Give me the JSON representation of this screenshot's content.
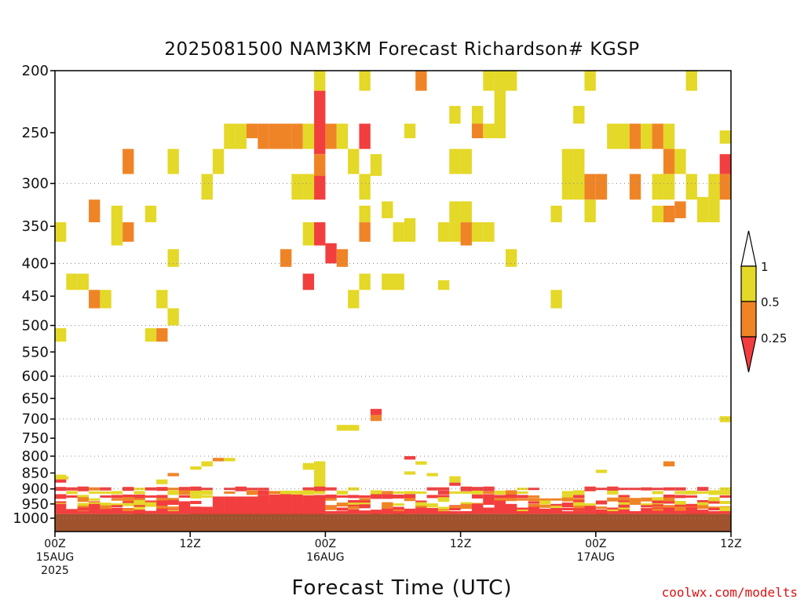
{
  "title": "2025081500 NAM3KM Forecast Richardson# KGSP",
  "xlabel": "Forecast Time (UTC)",
  "credit": "coolwx.com/modelts",
  "colors": {
    "lt025": "#f23e3e",
    "r025_05": "#ef8427",
    "r05_1": "#e4d828",
    "ground": "#a0522d",
    "grid": "#888888",
    "credit": "#dd1111"
  },
  "chart_data": {
    "type": "heatmap",
    "title": "2025081500 NAM3KM Forecast Richardson# KGSP",
    "xlabel": "Forecast Time (UTC)",
    "ylabel": "",
    "x_unit_hours_range": [
      0,
      60
    ],
    "y_range_hpa": [
      200,
      1025
    ],
    "y_scale": "log",
    "y_ticks": [
      200,
      250,
      300,
      350,
      400,
      450,
      500,
      550,
      600,
      650,
      700,
      750,
      800,
      850,
      900,
      950,
      1000
    ],
    "y_gridlines": [
      300,
      400,
      500,
      600,
      700,
      800,
      900,
      1000
    ],
    "x_ticks": [
      {
        "hour": 0,
        "label": "00Z",
        "sub": [
          "15AUG",
          "2025"
        ]
      },
      {
        "hour": 12,
        "label": "12Z",
        "sub": []
      },
      {
        "hour": 24,
        "label": "00Z",
        "sub": [
          "16AUG"
        ]
      },
      {
        "hour": 36,
        "label": "12Z",
        "sub": []
      },
      {
        "hour": 48,
        "label": "00Z",
        "sub": [
          "17AUG"
        ]
      },
      {
        "hour": 60,
        "label": "12Z",
        "sub": []
      }
    ],
    "legend": {
      "placement": "right",
      "labels": [
        "1",
        "0.5",
        "0.25"
      ]
    },
    "ground_above_hpa": 985,
    "cells": [
      {
        "h": 23.5,
        "p1": 200,
        "p2": 215,
        "c": "y"
      },
      {
        "h": 27.5,
        "p1": 200,
        "p2": 215,
        "c": "y"
      },
      {
        "h": 32.5,
        "p1": 200,
        "p2": 215,
        "c": "o"
      },
      {
        "h": 38.5,
        "p1": 200,
        "p2": 215,
        "c": "y"
      },
      {
        "h": 39.5,
        "p1": 200,
        "p2": 215,
        "c": "y"
      },
      {
        "h": 40.5,
        "p1": 200,
        "p2": 215,
        "c": "y"
      },
      {
        "h": 39.5,
        "p1": 215,
        "p2": 255,
        "c": "y"
      },
      {
        "h": 47.5,
        "p1": 200,
        "p2": 215,
        "c": "y"
      },
      {
        "h": 56.5,
        "p1": 200,
        "p2": 215,
        "c": "y"
      },
      {
        "h": 23.5,
        "p1": 215,
        "p2": 270,
        "c": "r"
      },
      {
        "h": 23.5,
        "p1": 270,
        "p2": 292,
        "c": "o"
      },
      {
        "h": 23.5,
        "p1": 292,
        "p2": 318,
        "c": "r"
      },
      {
        "h": 35.5,
        "p1": 227,
        "p2": 242,
        "c": "y"
      },
      {
        "h": 37.5,
        "p1": 227,
        "p2": 242,
        "c": "y"
      },
      {
        "h": 46.5,
        "p1": 227,
        "p2": 242,
        "c": "y"
      },
      {
        "h": 15.5,
        "p1": 242,
        "p2": 265,
        "c": "y"
      },
      {
        "h": 16.5,
        "p1": 242,
        "p2": 265,
        "c": "y"
      },
      {
        "h": 17.5,
        "p1": 242,
        "p2": 255,
        "c": "o"
      },
      {
        "h": 18.5,
        "p1": 242,
        "p2": 265,
        "c": "o"
      },
      {
        "h": 19.5,
        "p1": 242,
        "p2": 265,
        "c": "o"
      },
      {
        "h": 20.5,
        "p1": 242,
        "p2": 265,
        "c": "o"
      },
      {
        "h": 21.5,
        "p1": 242,
        "p2": 265,
        "c": "o"
      },
      {
        "h": 22.5,
        "p1": 242,
        "p2": 265,
        "c": "y"
      },
      {
        "h": 24.5,
        "p1": 242,
        "p2": 265,
        "c": "o"
      },
      {
        "h": 25.5,
        "p1": 242,
        "p2": 265,
        "c": "y"
      },
      {
        "h": 27.5,
        "p1": 242,
        "p2": 265,
        "c": "r"
      },
      {
        "h": 31.5,
        "p1": 242,
        "p2": 255,
        "c": "y"
      },
      {
        "h": 37.5,
        "p1": 242,
        "p2": 255,
        "c": "o"
      },
      {
        "h": 38.5,
        "p1": 242,
        "p2": 255,
        "c": "y"
      },
      {
        "h": 39.5,
        "p1": 242,
        "p2": 255,
        "c": "y"
      },
      {
        "h": 49.5,
        "p1": 242,
        "p2": 265,
        "c": "y"
      },
      {
        "h": 50.5,
        "p1": 242,
        "p2": 265,
        "c": "y"
      },
      {
        "h": 51.5,
        "p1": 242,
        "p2": 265,
        "c": "o"
      },
      {
        "h": 52.5,
        "p1": 242,
        "p2": 265,
        "c": "y"
      },
      {
        "h": 53.5,
        "p1": 242,
        "p2": 265,
        "c": "o"
      },
      {
        "h": 54.5,
        "p1": 242,
        "p2": 265,
        "c": "y"
      },
      {
        "h": 59.5,
        "p1": 248,
        "p2": 260,
        "c": "y"
      },
      {
        "h": 6.5,
        "p1": 265,
        "p2": 290,
        "c": "o"
      },
      {
        "h": 10.5,
        "p1": 265,
        "p2": 290,
        "c": "y"
      },
      {
        "h": 14.5,
        "p1": 265,
        "p2": 290,
        "c": "y"
      },
      {
        "h": 26.5,
        "p1": 265,
        "p2": 290,
        "c": "y"
      },
      {
        "h": 28.5,
        "p1": 270,
        "p2": 292,
        "c": "y"
      },
      {
        "h": 35.5,
        "p1": 265,
        "p2": 290,
        "c": "y"
      },
      {
        "h": 36.5,
        "p1": 265,
        "p2": 290,
        "c": "y"
      },
      {
        "h": 45.5,
        "p1": 265,
        "p2": 318,
        "c": "y"
      },
      {
        "h": 46.5,
        "p1": 265,
        "p2": 318,
        "c": "y"
      },
      {
        "h": 55.5,
        "p1": 265,
        "p2": 290,
        "c": "y"
      },
      {
        "h": 54.5,
        "p1": 265,
        "p2": 290,
        "c": "o"
      },
      {
        "h": 59.5,
        "p1": 270,
        "p2": 290,
        "c": "r"
      },
      {
        "h": 13.5,
        "p1": 290,
        "p2": 318,
        "c": "y"
      },
      {
        "h": 21.5,
        "p1": 290,
        "p2": 318,
        "c": "y"
      },
      {
        "h": 22.5,
        "p1": 290,
        "p2": 318,
        "c": "y"
      },
      {
        "h": 27.5,
        "p1": 290,
        "p2": 318,
        "c": "y"
      },
      {
        "h": 47.5,
        "p1": 290,
        "p2": 318,
        "c": "o"
      },
      {
        "h": 48.5,
        "p1": 290,
        "p2": 318,
        "c": "o"
      },
      {
        "h": 51.5,
        "p1": 290,
        "p2": 318,
        "c": "o"
      },
      {
        "h": 53.5,
        "p1": 290,
        "p2": 318,
        "c": "y"
      },
      {
        "h": 54.5,
        "p1": 290,
        "p2": 318,
        "c": "y"
      },
      {
        "h": 56.5,
        "p1": 290,
        "p2": 318,
        "c": "y"
      },
      {
        "h": 58.5,
        "p1": 290,
        "p2": 318,
        "c": "y"
      },
      {
        "h": 59.5,
        "p1": 290,
        "p2": 318,
        "c": "o"
      },
      {
        "h": 47.5,
        "p1": 318,
        "p2": 345,
        "c": "y"
      },
      {
        "h": 3.5,
        "p1": 318,
        "p2": 345,
        "c": "o"
      },
      {
        "h": 5.5,
        "p1": 325,
        "p2": 375,
        "c": "y"
      },
      {
        "h": 8.5,
        "p1": 325,
        "p2": 345,
        "c": "y"
      },
      {
        "h": 27.5,
        "p1": 325,
        "p2": 345,
        "c": "y"
      },
      {
        "h": 29.5,
        "p1": 320,
        "p2": 340,
        "c": "y"
      },
      {
        "h": 35.5,
        "p1": 320,
        "p2": 345,
        "c": "y"
      },
      {
        "h": 36.5,
        "p1": 320,
        "p2": 345,
        "c": "y"
      },
      {
        "h": 44.5,
        "p1": 325,
        "p2": 345,
        "c": "y"
      },
      {
        "h": 54.5,
        "p1": 325,
        "p2": 345,
        "c": "o"
      },
      {
        "h": 55.5,
        "p1": 320,
        "p2": 340,
        "c": "o"
      },
      {
        "h": 57.5,
        "p1": 315,
        "p2": 345,
        "c": "y"
      },
      {
        "h": 58.5,
        "p1": 315,
        "p2": 345,
        "c": "y"
      },
      {
        "h": 53.5,
        "p1": 325,
        "p2": 345,
        "c": "y"
      },
      {
        "h": 0.0,
        "p1": 345,
        "p2": 370,
        "c": "y"
      },
      {
        "h": 6.5,
        "p1": 345,
        "p2": 370,
        "c": "o"
      },
      {
        "h": 22.5,
        "p1": 345,
        "p2": 375,
        "c": "y"
      },
      {
        "h": 23.5,
        "p1": 345,
        "p2": 375,
        "c": "r"
      },
      {
        "h": 27.5,
        "p1": 345,
        "p2": 370,
        "c": "o"
      },
      {
        "h": 30.5,
        "p1": 345,
        "p2": 370,
        "c": "y"
      },
      {
        "h": 31.5,
        "p1": 340,
        "p2": 370,
        "c": "y"
      },
      {
        "h": 34.5,
        "p1": 345,
        "p2": 370,
        "c": "y"
      },
      {
        "h": 35.5,
        "p1": 345,
        "p2": 370,
        "c": "y"
      },
      {
        "h": 36.5,
        "p1": 345,
        "p2": 375,
        "c": "o"
      },
      {
        "h": 37.5,
        "p1": 345,
        "p2": 370,
        "c": "y"
      },
      {
        "h": 38.5,
        "p1": 345,
        "p2": 370,
        "c": "y"
      },
      {
        "h": 10.5,
        "p1": 380,
        "p2": 405,
        "c": "y"
      },
      {
        "h": 20.5,
        "p1": 380,
        "p2": 405,
        "c": "o"
      },
      {
        "h": 24.5,
        "p1": 372,
        "p2": 400,
        "c": "r"
      },
      {
        "h": 25.5,
        "p1": 380,
        "p2": 405,
        "c": "o"
      },
      {
        "h": 40.5,
        "p1": 380,
        "p2": 405,
        "c": "y"
      },
      {
        "h": 1.5,
        "p1": 415,
        "p2": 440,
        "c": "y"
      },
      {
        "h": 2.5,
        "p1": 415,
        "p2": 440,
        "c": "y"
      },
      {
        "h": 22.5,
        "p1": 415,
        "p2": 440,
        "c": "r"
      },
      {
        "h": 27.5,
        "p1": 415,
        "p2": 440,
        "c": "y"
      },
      {
        "h": 29.5,
        "p1": 415,
        "p2": 440,
        "c": "y"
      },
      {
        "h": 30.5,
        "p1": 415,
        "p2": 440,
        "c": "y"
      },
      {
        "h": 34.5,
        "p1": 425,
        "p2": 440,
        "c": "y"
      },
      {
        "h": 3.5,
        "p1": 440,
        "p2": 470,
        "c": "o"
      },
      {
        "h": 4.5,
        "p1": 440,
        "p2": 470,
        "c": "y"
      },
      {
        "h": 9.5,
        "p1": 440,
        "p2": 470,
        "c": "y"
      },
      {
        "h": 26.5,
        "p1": 440,
        "p2": 470,
        "c": "y"
      },
      {
        "h": 44.5,
        "p1": 440,
        "p2": 470,
        "c": "y"
      },
      {
        "h": 10.5,
        "p1": 470,
        "p2": 500,
        "c": "y"
      },
      {
        "h": 0.0,
        "p1": 505,
        "p2": 530,
        "c": "y"
      },
      {
        "h": 8.5,
        "p1": 505,
        "p2": 530,
        "c": "y"
      },
      {
        "h": 9.5,
        "p1": 505,
        "p2": 530,
        "c": "o"
      },
      {
        "h": 28.5,
        "p1": 675,
        "p2": 690,
        "c": "r"
      },
      {
        "h": 28.5,
        "p1": 690,
        "p2": 705,
        "c": "o"
      },
      {
        "h": 25.5,
        "p1": 715,
        "p2": 730,
        "c": "y"
      },
      {
        "h": 26.5,
        "p1": 715,
        "p2": 730,
        "c": "y"
      },
      {
        "h": 59.5,
        "p1": 693,
        "p2": 708,
        "c": "y"
      },
      {
        "h": 14.5,
        "p1": 805,
        "p2": 815,
        "c": "o"
      },
      {
        "h": 15.5,
        "p1": 805,
        "p2": 815,
        "c": "y"
      },
      {
        "h": 13.5,
        "p1": 815,
        "p2": 830,
        "c": "y"
      },
      {
        "h": 31.5,
        "p1": 800,
        "p2": 810,
        "c": "r"
      },
      {
        "h": 32.5,
        "p1": 815,
        "p2": 825,
        "c": "y"
      },
      {
        "h": 54.5,
        "p1": 815,
        "p2": 830,
        "c": "o"
      },
      {
        "h": 12.5,
        "p1": 830,
        "p2": 840,
        "c": "y"
      },
      {
        "h": 23.5,
        "p1": 815,
        "p2": 900,
        "c": "y"
      },
      {
        "h": 22.5,
        "p1": 820,
        "p2": 840,
        "c": "y"
      },
      {
        "h": 0.0,
        "p1": 855,
        "p2": 870,
        "c": "y"
      },
      {
        "h": 0.7,
        "p1": 860,
        "p2": 870,
        "c": "y"
      },
      {
        "h": 0.0,
        "p1": 870,
        "p2": 880,
        "c": "r"
      },
      {
        "h": 10.5,
        "p1": 850,
        "p2": 860,
        "c": "o"
      },
      {
        "h": 33.5,
        "p1": 850,
        "p2": 860,
        "c": "y"
      },
      {
        "h": 31.5,
        "p1": 845,
        "p2": 855,
        "c": "y"
      },
      {
        "h": 35.5,
        "p1": 860,
        "p2": 880,
        "c": "y"
      },
      {
        "h": 35.5,
        "p1": 880,
        "p2": 890,
        "c": "r"
      },
      {
        "h": 48.5,
        "p1": 840,
        "p2": 850,
        "c": "y"
      },
      {
        "h": 9.5,
        "p1": 870,
        "p2": 885,
        "c": "y"
      },
      {
        "h": 59.5,
        "p1": 895,
        "p2": 910,
        "c": "y"
      }
    ],
    "bands": [
      {
        "p": 900,
        "c": "r"
      },
      {
        "p": 912,
        "c": "y"
      },
      {
        "p": 925,
        "c": "r"
      },
      {
        "p": 935,
        "c": "o"
      },
      {
        "p": 945,
        "c": "r"
      },
      {
        "p": 952,
        "c": "y"
      },
      {
        "p": 958,
        "c": "r"
      },
      {
        "p": 963,
        "c": "o"
      },
      {
        "p": 968,
        "c": "r"
      },
      {
        "p": 973,
        "c": "r"
      },
      {
        "p": 978,
        "c": "r"
      }
    ]
  }
}
